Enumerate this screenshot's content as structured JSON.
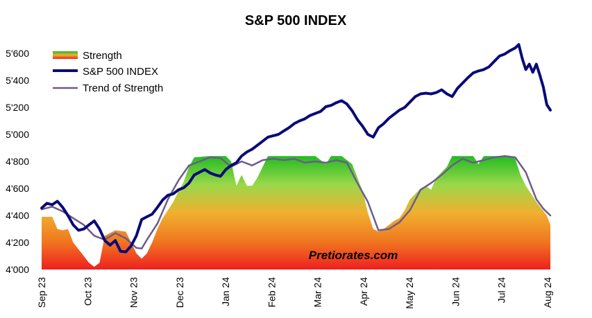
{
  "chart_data": {
    "type": "line",
    "title": "S&P 500 INDEX",
    "xlabel": "",
    "ylabel": "",
    "ylim": [
      4000,
      5700
    ],
    "yticks": [
      "4'000",
      "4'200",
      "4'400",
      "4'600",
      "4'800",
      "5'000",
      "5'200",
      "5'400",
      "5'600"
    ],
    "xticks": [
      "Sep 23",
      "Oct 23",
      "Nov 23",
      "Dec 23",
      "Jan 24",
      "Feb 24",
      "Mar 24",
      "Apr 24",
      "May 24",
      "Jun 24",
      "Jul 24",
      "Aug 24"
    ],
    "grid": false,
    "legend_position": "top-left",
    "legend": [
      "Strength",
      "S&P 500 INDEX",
      "Trend of Strength"
    ],
    "series": [
      {
        "name": "S&P 500 INDEX",
        "color": "#0a0a78",
        "points": [
          [
            0,
            4455
          ],
          [
            0.15,
            4490
          ],
          [
            0.3,
            4480
          ],
          [
            0.45,
            4505
          ],
          [
            0.6,
            4460
          ],
          [
            0.75,
            4400
          ],
          [
            0.9,
            4330
          ],
          [
            1.05,
            4290
          ],
          [
            1.2,
            4300
          ],
          [
            1.35,
            4330
          ],
          [
            1.5,
            4360
          ],
          [
            1.65,
            4300
          ],
          [
            1.8,
            4215
          ],
          [
            1.95,
            4180
          ],
          [
            2.1,
            4215
          ],
          [
            2.25,
            4135
          ],
          [
            2.4,
            4130
          ],
          [
            2.55,
            4175
          ],
          [
            2.7,
            4250
          ],
          [
            2.85,
            4370
          ],
          [
            3.0,
            4390
          ],
          [
            3.15,
            4410
          ],
          [
            3.3,
            4460
          ],
          [
            3.45,
            4515
          ],
          [
            3.6,
            4550
          ],
          [
            3.75,
            4560
          ],
          [
            3.9,
            4590
          ],
          [
            4.05,
            4605
          ],
          [
            4.2,
            4640
          ],
          [
            4.35,
            4700
          ],
          [
            4.5,
            4720
          ],
          [
            4.65,
            4740
          ],
          [
            4.8,
            4715
          ],
          [
            4.95,
            4700
          ],
          [
            5.1,
            4690
          ],
          [
            5.25,
            4740
          ],
          [
            5.4,
            4770
          ],
          [
            5.55,
            4790
          ],
          [
            5.7,
            4840
          ],
          [
            5.85,
            4870
          ],
          [
            6.0,
            4890
          ],
          [
            6.15,
            4920
          ],
          [
            6.3,
            4950
          ],
          [
            6.45,
            4980
          ],
          [
            6.6,
            4990
          ],
          [
            6.75,
            5000
          ],
          [
            6.9,
            5025
          ],
          [
            7.05,
            5050
          ],
          [
            7.2,
            5080
          ],
          [
            7.35,
            5100
          ],
          [
            7.5,
            5115
          ],
          [
            7.65,
            5140
          ],
          [
            7.8,
            5155
          ],
          [
            7.95,
            5170
          ],
          [
            8.1,
            5205
          ],
          [
            8.25,
            5215
          ],
          [
            8.4,
            5235
          ],
          [
            8.55,
            5250
          ],
          [
            8.7,
            5225
          ],
          [
            8.85,
            5175
          ],
          [
            9.0,
            5110
          ],
          [
            9.15,
            5060
          ],
          [
            9.3,
            5000
          ],
          [
            9.45,
            4980
          ],
          [
            9.6,
            5050
          ],
          [
            9.75,
            5080
          ],
          [
            9.9,
            5120
          ],
          [
            10.05,
            5150
          ],
          [
            10.2,
            5180
          ],
          [
            10.35,
            5200
          ],
          [
            10.5,
            5240
          ],
          [
            10.65,
            5280
          ],
          [
            10.8,
            5300
          ],
          [
            10.95,
            5305
          ],
          [
            11.1,
            5300
          ],
          [
            11.25,
            5310
          ],
          [
            11.4,
            5330
          ],
          [
            11.55,
            5300
          ],
          [
            11.7,
            5280
          ],
          [
            11.85,
            5340
          ],
          [
            12.0,
            5380
          ],
          [
            12.15,
            5420
          ],
          [
            12.3,
            5455
          ],
          [
            12.45,
            5470
          ],
          [
            12.6,
            5480
          ],
          [
            12.75,
            5500
          ],
          [
            12.9,
            5540
          ],
          [
            13.05,
            5580
          ],
          [
            13.2,
            5595
          ],
          [
            13.35,
            5620
          ],
          [
            13.5,
            5640
          ],
          [
            13.6,
            5665
          ],
          [
            13.7,
            5560
          ],
          [
            13.8,
            5480
          ],
          [
            13.9,
            5520
          ],
          [
            14.0,
            5460
          ],
          [
            14.1,
            5520
          ],
          [
            14.2,
            5440
          ],
          [
            14.3,
            5350
          ],
          [
            14.4,
            5220
          ],
          [
            14.5,
            5180
          ]
        ]
      },
      {
        "name": "Trend of Strength",
        "color": "#6e5a8c",
        "points": [
          [
            0,
            4445
          ],
          [
            0.3,
            4465
          ],
          [
            0.6,
            4430
          ],
          [
            0.9,
            4380
          ],
          [
            1.2,
            4330
          ],
          [
            1.5,
            4250
          ],
          [
            1.8,
            4220
          ],
          [
            2.1,
            4270
          ],
          [
            2.4,
            4230
          ],
          [
            2.7,
            4160
          ],
          [
            2.85,
            4155
          ],
          [
            3.0,
            4220
          ],
          [
            3.3,
            4340
          ],
          [
            3.6,
            4520
          ],
          [
            3.9,
            4660
          ],
          [
            4.2,
            4770
          ],
          [
            4.5,
            4800
          ],
          [
            4.8,
            4830
          ],
          [
            5.1,
            4825
          ],
          [
            5.4,
            4760
          ],
          [
            5.7,
            4800
          ],
          [
            6.0,
            4770
          ],
          [
            6.3,
            4810
          ],
          [
            6.6,
            4820
          ],
          [
            6.9,
            4810
          ],
          [
            7.2,
            4820
          ],
          [
            7.5,
            4790
          ],
          [
            7.8,
            4800
          ],
          [
            8.1,
            4790
          ],
          [
            8.4,
            4810
          ],
          [
            8.7,
            4790
          ],
          [
            9.0,
            4640
          ],
          [
            9.3,
            4500
          ],
          [
            9.6,
            4290
          ],
          [
            9.9,
            4300
          ],
          [
            10.2,
            4350
          ],
          [
            10.5,
            4440
          ],
          [
            10.8,
            4590
          ],
          [
            11.1,
            4640
          ],
          [
            11.4,
            4700
          ],
          [
            11.7,
            4770
          ],
          [
            12.0,
            4820
          ],
          [
            12.3,
            4790
          ],
          [
            12.6,
            4810
          ],
          [
            12.9,
            4830
          ],
          [
            13.2,
            4840
          ],
          [
            13.5,
            4830
          ],
          [
            13.8,
            4720
          ],
          [
            14.1,
            4520
          ],
          [
            14.3,
            4450
          ],
          [
            14.5,
            4400
          ]
        ]
      },
      {
        "name": "Strength",
        "type": "area",
        "baseline": 4000,
        "gradient": [
          "#22bb22",
          "#9ad84a",
          "#f0b030",
          "#f07820",
          "#ee2020"
        ],
        "points": [
          [
            0,
            4390
          ],
          [
            0.3,
            4390
          ],
          [
            0.45,
            4300
          ],
          [
            0.6,
            4290
          ],
          [
            0.75,
            4300
          ],
          [
            0.9,
            4200
          ],
          [
            1.05,
            4150
          ],
          [
            1.2,
            4100
          ],
          [
            1.35,
            4050
          ],
          [
            1.5,
            4020
          ],
          [
            1.65,
            4050
          ],
          [
            1.8,
            4250
          ],
          [
            2.1,
            4290
          ],
          [
            2.4,
            4280
          ],
          [
            2.55,
            4200
          ],
          [
            2.7,
            4120
          ],
          [
            2.85,
            4080
          ],
          [
            3.0,
            4120
          ],
          [
            3.15,
            4200
          ],
          [
            3.3,
            4300
          ],
          [
            3.45,
            4380
          ],
          [
            3.6,
            4440
          ],
          [
            3.75,
            4500
          ],
          [
            3.9,
            4580
          ],
          [
            4.05,
            4650
          ],
          [
            4.2,
            4760
          ],
          [
            4.35,
            4830
          ],
          [
            4.8,
            4840
          ],
          [
            5.1,
            4840
          ],
          [
            5.25,
            4840
          ],
          [
            5.4,
            4800
          ],
          [
            5.55,
            4620
          ],
          [
            5.7,
            4700
          ],
          [
            5.85,
            4620
          ],
          [
            6.0,
            4620
          ],
          [
            6.15,
            4680
          ],
          [
            6.3,
            4760
          ],
          [
            6.45,
            4840
          ],
          [
            7.5,
            4840
          ],
          [
            7.8,
            4840
          ],
          [
            8.1,
            4780
          ],
          [
            8.25,
            4840
          ],
          [
            8.55,
            4840
          ],
          [
            8.85,
            4780
          ],
          [
            9.0,
            4680
          ],
          [
            9.15,
            4580
          ],
          [
            9.3,
            4420
          ],
          [
            9.45,
            4300
          ],
          [
            9.6,
            4280
          ],
          [
            9.75,
            4300
          ],
          [
            9.9,
            4330
          ],
          [
            10.05,
            4360
          ],
          [
            10.2,
            4380
          ],
          [
            10.35,
            4440
          ],
          [
            10.5,
            4520
          ],
          [
            10.65,
            4560
          ],
          [
            10.8,
            4600
          ],
          [
            10.95,
            4620
          ],
          [
            11.1,
            4590
          ],
          [
            11.25,
            4680
          ],
          [
            11.4,
            4720
          ],
          [
            11.55,
            4760
          ],
          [
            11.7,
            4840
          ],
          [
            12.3,
            4840
          ],
          [
            12.45,
            4780
          ],
          [
            12.6,
            4840
          ],
          [
            13.05,
            4840
          ],
          [
            13.35,
            4840
          ],
          [
            13.5,
            4820
          ],
          [
            13.65,
            4700
          ],
          [
            13.8,
            4620
          ],
          [
            13.95,
            4560
          ],
          [
            14.1,
            4500
          ],
          [
            14.25,
            4450
          ],
          [
            14.4,
            4400
          ],
          [
            14.5,
            4330
          ]
        ]
      }
    ],
    "annotations": [
      "Pretiorates.com"
    ]
  },
  "colors": {
    "index_line": "#0a0a78",
    "trend_line": "#6e5a8c"
  }
}
